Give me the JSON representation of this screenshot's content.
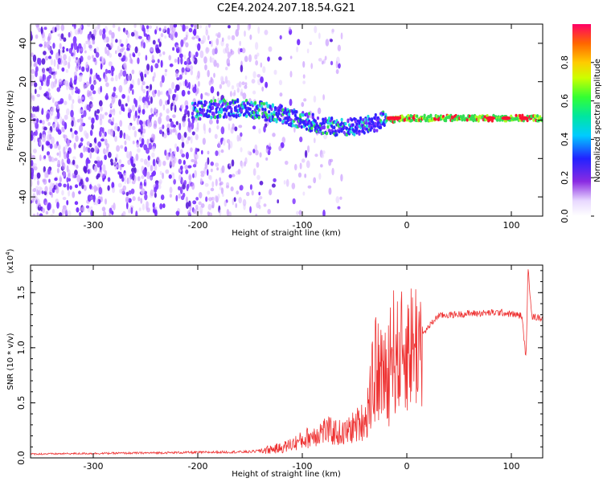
{
  "title": "C2E4.2024.207.18.54.G21",
  "colors": {
    "signal_line": "#ee3333",
    "point_purple": "#7a33ff",
    "point_light": "#cc99ff",
    "point_cyan": "#22dddd",
    "point_green": "#33dd55",
    "point_red": "#ff1133"
  },
  "chart_data": [
    {
      "type": "heatmap",
      "xlabel": "Height of straight line (km)",
      "ylabel": "Frequency (Hz)",
      "xlim": [
        -360,
        130
      ],
      "ylim": [
        -50,
        50
      ],
      "xticks": [
        -300,
        -200,
        -100,
        0,
        100
      ],
      "yticks": [
        -40,
        -20,
        0,
        20,
        40
      ],
      "colorbar": {
        "label": "Normalized spectral amplitude",
        "range": [
          0,
          1
        ],
        "ticks": [
          "0.0",
          "0.2",
          "0.4",
          "0.6",
          "0.8"
        ],
        "colormap": "rainbow"
      },
      "ridge": {
        "x": [
          -200,
          -180,
          -160,
          -140,
          -120,
          -100,
          -80,
          -60,
          -40,
          -20,
          0,
          20,
          40,
          60,
          80,
          100,
          120,
          130
        ],
        "y": [
          5,
          6,
          6,
          5,
          3,
          0,
          -3,
          -4,
          -3,
          0,
          1,
          1,
          1,
          1,
          1,
          1,
          1,
          1
        ]
      }
    },
    {
      "type": "line",
      "xlabel": "Height of straight line (km)",
      "ylabel": "SNR (10 * v/v)",
      "yscale_label": "(x10",
      "yscale_exp": "4",
      "xlim": [
        -360,
        130
      ],
      "ylim": [
        0,
        17500
      ],
      "xticks": [
        -300,
        -200,
        -100,
        0,
        100
      ],
      "yticks": [
        "0.0",
        "0.5",
        "1.0",
        "1.5"
      ],
      "envelope": {
        "x": [
          -360,
          -250,
          -150,
          -120,
          -100,
          -80,
          -60,
          -40,
          -30,
          -20,
          -15,
          -10,
          0,
          10,
          20,
          30,
          60,
          90,
          110,
          114,
          116,
          120,
          130
        ],
        "y": [
          350,
          450,
          550,
          900,
          1600,
          2500,
          2200,
          3500,
          8000,
          7500,
          10500,
          9000,
          10000,
          10500,
          11800,
          12900,
          13100,
          13200,
          12900,
          9000,
          17000,
          12800,
          12700
        ]
      }
    }
  ]
}
